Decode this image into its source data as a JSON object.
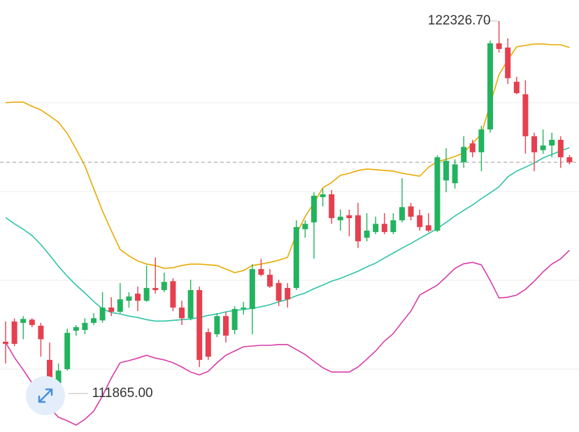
{
  "chart_data": {
    "type": "candlestick",
    "open": [
      113320,
      113890,
      113850,
      113940,
      113770,
      112810,
      112160,
      112550,
      113630,
      113650,
      113850,
      113920,
      114280,
      114160,
      114470,
      114670,
      114470,
      114830,
      114770,
      115020,
      114280,
      113980,
      114770,
      113590,
      113530,
      114040,
      113650,
      114240,
      114240,
      115360,
      115200,
      114970,
      114830,
      114830,
      116480,
      116670,
      117380,
      117460,
      116730,
      116870,
      116870,
      116240,
      116400,
      116630,
      116400,
      116730,
      117120,
      116870,
      116590,
      116440,
      117850,
      117770,
      118360,
      118890,
      118640,
      119280,
      121700,
      121580,
      120620,
      120270,
      119090,
      118700,
      118830,
      118990,
      118500
    ],
    "high": [
      113890,
      113980,
      114040,
      113980,
      113850,
      113300,
      112710,
      113690,
      113790,
      113980,
      114120,
      114710,
      114570,
      114970,
      114710,
      114870,
      115460,
      115690,
      115260,
      115100,
      114470,
      115060,
      114870,
      113690,
      114120,
      114160,
      114320,
      114440,
      115500,
      115650,
      115360,
      115060,
      114970,
      116730,
      116730,
      117520,
      117620,
      117580,
      117030,
      117030,
      117220,
      116930,
      116830,
      116930,
      116930,
      117910,
      117220,
      117030,
      116930,
      118560,
      118750,
      118440,
      119090,
      118990,
      119380,
      121780,
      122326.7,
      121840,
      120760,
      120660,
      119190,
      119280,
      119190,
      119090,
      118560
    ],
    "low": [
      112710,
      113200,
      113390,
      113730,
      112900,
      112020,
      111865,
      112510,
      113490,
      113530,
      113790,
      113850,
      114040,
      114120,
      114280,
      114180,
      114440,
      114670,
      114710,
      114180,
      113790,
      113920,
      112610,
      112810,
      113450,
      113300,
      113530,
      114080,
      113530,
      115160,
      114830,
      114320,
      114280,
      114770,
      116240,
      115650,
      117120,
      116630,
      116440,
      116280,
      115950,
      116140,
      116340,
      116340,
      116340,
      116670,
      116730,
      116440,
      116400,
      116400,
      117520,
      117620,
      118200,
      118500,
      118110,
      119190,
      121440,
      120560,
      120270,
      118600,
      118110,
      118600,
      118500,
      118200,
      118300
    ],
    "close": [
      113260,
      113260,
      113960,
      113790,
      113390,
      112160,
      112510,
      113570,
      113730,
      113850,
      113980,
      114280,
      114160,
      114510,
      114590,
      114470,
      114830,
      114770,
      115000,
      114280,
      113980,
      114770,
      112810,
      112900,
      114040,
      113490,
      114240,
      114280,
      115360,
      115200,
      114870,
      114470,
      114510,
      116540,
      116630,
      117420,
      117460,
      116790,
      116830,
      116790,
      116140,
      116440,
      116630,
      116400,
      116730,
      117100,
      116830,
      116540,
      116440,
      118500,
      118400,
      118300,
      118790,
      118640,
      119280,
      121700,
      121540,
      120720,
      120300,
      119090,
      118640,
      118830,
      118990,
      118500,
      118360
    ],
    "up_color": "#22b35e",
    "down_color": "#e5404f",
    "overlays": [
      {
        "color": "#e8a900",
        "values": [
          120030,
          120050,
          120050,
          119930,
          119830,
          119660,
          119480,
          119170,
          118730,
          118260,
          117620,
          116990,
          116440,
          115910,
          115730,
          115590,
          115500,
          115460,
          115380,
          115400,
          115460,
          115500,
          115500,
          115480,
          115460,
          115360,
          115260,
          115320,
          115460,
          115500,
          115550,
          115610,
          115690,
          116340,
          116830,
          117220,
          117640,
          117790,
          117990,
          118050,
          118130,
          118170,
          118150,
          118130,
          118110,
          118050,
          118010,
          117970,
          118220,
          118380,
          118440,
          118520,
          118620,
          118890,
          119150,
          119990,
          120820,
          121230,
          121600,
          121640,
          121680,
          121680,
          121660,
          121660,
          121580
        ]
      },
      {
        "color": "#2ec4a4",
        "values": [
          116810,
          116630,
          116480,
          116300,
          116050,
          115750,
          115440,
          115160,
          114910,
          114690,
          114450,
          114240,
          114140,
          114100,
          114040,
          114000,
          113940,
          113900,
          113900,
          113920,
          113940,
          113960,
          114000,
          114060,
          114100,
          114160,
          114200,
          114220,
          114260,
          114300,
          114360,
          114440,
          114510,
          114610,
          114690,
          114810,
          114910,
          115020,
          115100,
          115200,
          115300,
          115420,
          115530,
          115670,
          115810,
          115950,
          116080,
          116220,
          116360,
          116500,
          116670,
          116850,
          117010,
          117160,
          117340,
          117500,
          117670,
          117950,
          118110,
          118220,
          118340,
          118480,
          118580,
          118680,
          118770
        ]
      },
      {
        "color": "#d63ca8",
        "values": [
          113300,
          112880,
          112530,
          112160,
          111820,
          111470,
          111200,
          111100,
          110980,
          111140,
          111370,
          111800,
          112300,
          112730,
          112790,
          112860,
          112940,
          112860,
          112810,
          112730,
          112610,
          112470,
          112390,
          112490,
          112730,
          112940,
          113060,
          113180,
          113200,
          113220,
          113220,
          113240,
          113240,
          113100,
          112960,
          112770,
          112590,
          112470,
          112470,
          112470,
          112610,
          112830,
          113060,
          113340,
          113550,
          113870,
          114180,
          114630,
          114770,
          114910,
          115140,
          115380,
          115510,
          115550,
          115480,
          115040,
          114550,
          114570,
          114630,
          114790,
          115020,
          115280,
          115500,
          115650,
          115890
        ]
      }
    ],
    "annotations": [
      {
        "value": 122326.7,
        "label": "122326.70"
      },
      {
        "value": 111865,
        "label": "111865.00"
      }
    ],
    "last_price_line": true
  }
}
